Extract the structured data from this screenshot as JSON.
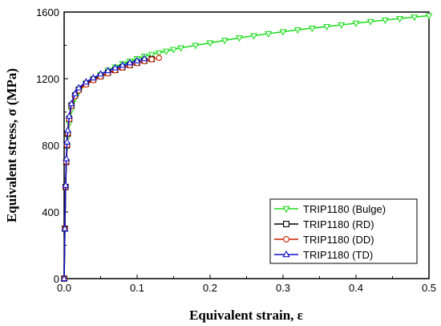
{
  "chart_data": {
    "type": "line",
    "xlabel": "Equivalent strain, ε",
    "ylabel": "Equivalent stress, σ (MPa)",
    "xlim": [
      0,
      0.5
    ],
    "ylim": [
      0,
      1600
    ],
    "xticks": [
      0.0,
      0.1,
      0.2,
      0.3,
      0.4,
      0.5
    ],
    "xtick_labels": [
      "0.0",
      "0.1",
      "0.2",
      "0.3",
      "0.4",
      "0.5"
    ],
    "yticks": [
      0,
      400,
      800,
      1200,
      1600
    ],
    "ytick_labels": [
      "0",
      "400",
      "800",
      "1200",
      "1600"
    ],
    "grid": false,
    "legend_position": "bottom-right",
    "series": [
      {
        "name": "TRIP1180 (Bulge)",
        "color": "#22dd22",
        "marker": "triangle-down",
        "x": [
          0.0,
          0.001,
          0.002,
          0.003,
          0.004,
          0.005,
          0.007,
          0.01,
          0.015,
          0.02,
          0.03,
          0.04,
          0.05,
          0.06,
          0.07,
          0.08,
          0.09,
          0.1,
          0.11,
          0.12,
          0.13,
          0.14,
          0.15,
          0.16,
          0.18,
          0.2,
          0.22,
          0.24,
          0.26,
          0.28,
          0.3,
          0.32,
          0.34,
          0.36,
          0.38,
          0.4,
          0.42,
          0.44,
          0.46,
          0.48,
          0.5
        ],
        "y": [
          0,
          300,
          550,
          700,
          790,
          850,
          930,
          1010,
          1080,
          1120,
          1170,
          1200,
          1225,
          1250,
          1270,
          1290,
          1305,
          1320,
          1335,
          1345,
          1355,
          1365,
          1375,
          1385,
          1400,
          1415,
          1430,
          1445,
          1458,
          1470,
          1482,
          1493,
          1503,
          1513,
          1523,
          1533,
          1543,
          1552,
          1561,
          1570,
          1578
        ]
      },
      {
        "name": "TRIP1180 (RD)",
        "color": "#000000",
        "marker": "square",
        "x": [
          0.0,
          0.001,
          0.002,
          0.003,
          0.004,
          0.005,
          0.007,
          0.01,
          0.015,
          0.02,
          0.03,
          0.04,
          0.05,
          0.06,
          0.07,
          0.08,
          0.09,
          0.1,
          0.11,
          0.12
        ],
        "y": [
          0,
          300,
          550,
          700,
          800,
          870,
          960,
          1040,
          1100,
          1135,
          1170,
          1195,
          1215,
          1235,
          1252,
          1268,
          1282,
          1295,
          1308,
          1318
        ]
      },
      {
        "name": "TRIP1180 (DD)",
        "color": "#cc2200",
        "marker": "circle",
        "x": [
          0.0,
          0.001,
          0.002,
          0.003,
          0.004,
          0.005,
          0.007,
          0.01,
          0.015,
          0.02,
          0.03,
          0.04,
          0.05,
          0.06,
          0.07,
          0.08,
          0.09,
          0.1,
          0.11,
          0.12,
          0.13
        ],
        "y": [
          0,
          300,
          550,
          700,
          800,
          870,
          955,
          1035,
          1095,
          1130,
          1165,
          1190,
          1212,
          1232,
          1250,
          1266,
          1280,
          1293,
          1305,
          1316,
          1325
        ]
      },
      {
        "name": "TRIP1180 (TD)",
        "color": "#1111cc",
        "marker": "triangle-up",
        "x": [
          0.0,
          0.001,
          0.002,
          0.003,
          0.004,
          0.005,
          0.007,
          0.01,
          0.015,
          0.02,
          0.03,
          0.04,
          0.05,
          0.06,
          0.07,
          0.08,
          0.09,
          0.1,
          0.11
        ],
        "y": [
          0,
          300,
          560,
          720,
          820,
          890,
          975,
          1050,
          1110,
          1145,
          1180,
          1205,
          1228,
          1248,
          1265,
          1280,
          1295,
          1308,
          1320
        ]
      }
    ]
  }
}
